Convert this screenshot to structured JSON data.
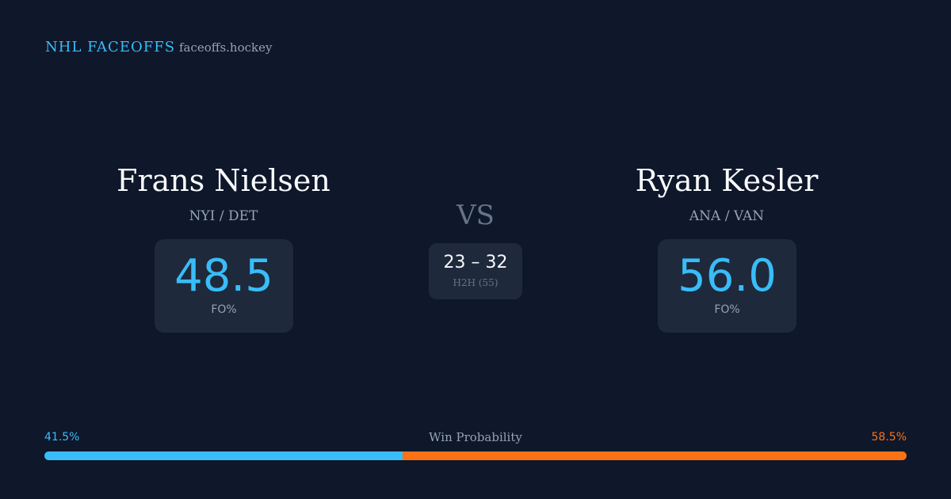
{
  "header": {
    "title": "NHL FACEOFFS",
    "site": "faceoffs.hockey"
  },
  "players": [
    {
      "name": "Frans Nielsen",
      "teams": "NYI / DET",
      "fo": "48.5",
      "fo_label": "FO%"
    },
    {
      "name": "Ryan Kesler",
      "teams": "ANA / VAN",
      "fo": "56.0",
      "fo_label": "FO%"
    }
  ],
  "vs": "VS",
  "h2h": {
    "score": "23 – 32",
    "label": "H2H (55)"
  },
  "win_probability": {
    "label": "Win Probability",
    "left": {
      "value": 41.5,
      "label": "41.5%"
    },
    "right": {
      "value": 58.5,
      "label": "58.5%"
    }
  }
}
